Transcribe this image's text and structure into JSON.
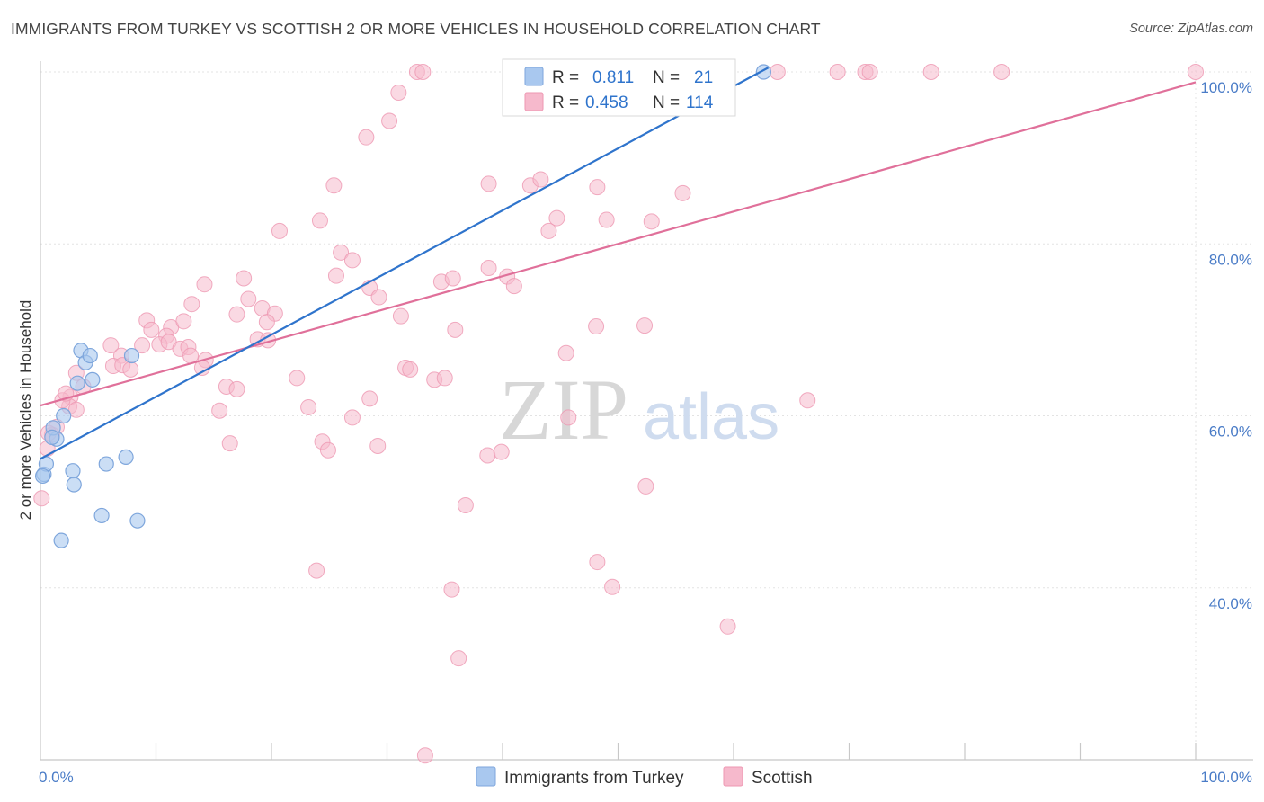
{
  "header": {
    "title": "IMMIGRANTS FROM TURKEY VS SCOTTISH 2 OR MORE VEHICLES IN HOUSEHOLD CORRELATION CHART",
    "source": "Source: ZipAtlas.com"
  },
  "watermark": {
    "zip": "ZIP",
    "atlas": "atlas"
  },
  "colors": {
    "blue_fill": "#a9c8ef",
    "blue_stroke": "#7ea6dc",
    "blue_line": "#2f74cc",
    "pink_fill": "#f6b9cc",
    "pink_stroke": "#ee97b2",
    "pink_line": "#e0709a",
    "grid": "#e3e3e3",
    "tick_text": "#4a7cc7"
  },
  "legend": {
    "r_label": "R =",
    "n_label": "N =",
    "rows": [
      {
        "series": "Immigrants from Turkey",
        "r": "0.811",
        "n": "21"
      },
      {
        "series": "Scottish",
        "r": "0.458",
        "n": "114"
      }
    ]
  },
  "chart_data": {
    "type": "scatter",
    "title": "IMMIGRANTS FROM TURKEY VS SCOTTISH 2 OR MORE VEHICLES IN HOUSEHOLD CORRELATION CHART",
    "xlabel": "",
    "ylabel": "2 or more Vehicles in Household",
    "xlim": [
      0,
      100
    ],
    "ylim": [
      18,
      102
    ],
    "x_tick_labels": [
      "0.0%",
      "100.0%"
    ],
    "y_ticks": [
      40,
      60,
      80,
      100
    ],
    "y_tick_labels": [
      "40.0%",
      "60.0%",
      "80.0%",
      "100.0%"
    ],
    "grid": true,
    "legend_position": "top-center",
    "series": [
      {
        "name": "Immigrants from Turkey",
        "color": "#a9c8ef",
        "r": 0.811,
        "n": 21,
        "trend": [
          [
            0,
            55.0
          ],
          [
            63.0,
            100.5
          ]
        ],
        "points": [
          [
            0.3,
            53.2
          ],
          [
            0.5,
            54.4
          ],
          [
            1.4,
            57.3
          ],
          [
            1.1,
            58.6
          ],
          [
            2.0,
            60.0
          ],
          [
            3.5,
            67.6
          ],
          [
            3.9,
            66.2
          ],
          [
            4.3,
            67.0
          ],
          [
            3.2,
            63.8
          ],
          [
            4.5,
            64.2
          ],
          [
            2.8,
            53.6
          ],
          [
            2.9,
            52.0
          ],
          [
            5.7,
            54.4
          ],
          [
            7.4,
            55.2
          ],
          [
            5.3,
            48.4
          ],
          [
            8.4,
            47.8
          ],
          [
            1.8,
            45.5
          ],
          [
            7.9,
            67.0
          ],
          [
            0.2,
            53.0
          ],
          [
            62.6,
            100.0
          ],
          [
            1.0,
            57.5
          ]
        ]
      },
      {
        "name": "Scottish",
        "color": "#f6b9cc",
        "r": 0.458,
        "n": 114,
        "trend": [
          [
            0,
            61.2
          ],
          [
            100,
            98.8
          ]
        ],
        "points": [
          [
            32.6,
            100
          ],
          [
            33.1,
            100
          ],
          [
            46.8,
            100
          ],
          [
            58.1,
            100
          ],
          [
            58.4,
            100
          ],
          [
            63.8,
            100
          ],
          [
            69.0,
            100
          ],
          [
            71.4,
            100
          ],
          [
            71.8,
            100
          ],
          [
            77.1,
            100
          ],
          [
            83.2,
            100
          ],
          [
            100,
            100
          ],
          [
            47.6,
            99.7
          ],
          [
            55.5,
            99.5
          ],
          [
            31.0,
            97.6
          ],
          [
            47.2,
            96.0
          ],
          [
            30.2,
            94.3
          ],
          [
            28.2,
            92.4
          ],
          [
            50.8,
            96.6
          ],
          [
            25.4,
            86.8
          ],
          [
            38.8,
            87.0
          ],
          [
            42.4,
            86.8
          ],
          [
            43.3,
            87.5
          ],
          [
            48.2,
            86.6
          ],
          [
            55.6,
            85.9
          ],
          [
            44.7,
            83.0
          ],
          [
            24.2,
            82.7
          ],
          [
            49.0,
            82.8
          ],
          [
            52.9,
            82.6
          ],
          [
            20.7,
            81.5
          ],
          [
            44.0,
            81.5
          ],
          [
            25.6,
            76.3
          ],
          [
            26.0,
            79.0
          ],
          [
            27.0,
            78.1
          ],
          [
            38.8,
            77.2
          ],
          [
            34.7,
            75.6
          ],
          [
            35.7,
            76.0
          ],
          [
            40.4,
            76.2
          ],
          [
            41.0,
            75.1
          ],
          [
            17.6,
            76.0
          ],
          [
            28.5,
            74.9
          ],
          [
            29.3,
            73.8
          ],
          [
            14.2,
            75.3
          ],
          [
            18.0,
            73.6
          ],
          [
            19.2,
            72.5
          ],
          [
            13.1,
            73.0
          ],
          [
            17.0,
            71.8
          ],
          [
            20.3,
            71.9
          ],
          [
            31.2,
            71.6
          ],
          [
            9.2,
            71.1
          ],
          [
            11.3,
            70.3
          ],
          [
            12.4,
            71.0
          ],
          [
            19.6,
            70.9
          ],
          [
            9.6,
            70.0
          ],
          [
            10.9,
            69.3
          ],
          [
            18.8,
            68.9
          ],
          [
            19.7,
            68.8
          ],
          [
            10.3,
            68.3
          ],
          [
            11.1,
            68.6
          ],
          [
            8.8,
            68.2
          ],
          [
            12.1,
            67.8
          ],
          [
            12.8,
            68.0
          ],
          [
            6.1,
            68.2
          ],
          [
            7.0,
            67.0
          ],
          [
            13.0,
            67.0
          ],
          [
            14.3,
            66.5
          ],
          [
            14.0,
            65.6
          ],
          [
            6.3,
            65.8
          ],
          [
            7.1,
            65.9
          ],
          [
            7.8,
            65.4
          ],
          [
            3.1,
            65.0
          ],
          [
            3.7,
            63.4
          ],
          [
            31.6,
            65.6
          ],
          [
            32.0,
            65.4
          ],
          [
            34.1,
            64.2
          ],
          [
            22.2,
            64.4
          ],
          [
            16.1,
            63.4
          ],
          [
            17.0,
            63.1
          ],
          [
            2.6,
            62.2
          ],
          [
            2.5,
            61.1
          ],
          [
            1.9,
            61.8
          ],
          [
            28.5,
            62.0
          ],
          [
            23.2,
            61.0
          ],
          [
            15.5,
            60.6
          ],
          [
            27.0,
            59.8
          ],
          [
            45.7,
            59.8
          ],
          [
            16.4,
            56.8
          ],
          [
            24.4,
            57.0
          ],
          [
            24.9,
            56.0
          ],
          [
            29.2,
            56.5
          ],
          [
            38.7,
            55.4
          ],
          [
            39.9,
            55.8
          ],
          [
            1.0,
            57.8
          ],
          [
            0.7,
            58.0
          ],
          [
            0.1,
            50.4
          ],
          [
            36.8,
            49.6
          ],
          [
            52.4,
            51.8
          ],
          [
            35.0,
            64.4
          ],
          [
            35.9,
            70.0
          ],
          [
            48.1,
            70.4
          ],
          [
            52.3,
            70.5
          ],
          [
            45.5,
            67.3
          ],
          [
            66.4,
            61.8
          ],
          [
            23.9,
            42.0
          ],
          [
            48.2,
            43.0
          ],
          [
            35.6,
            39.8
          ],
          [
            49.5,
            40.1
          ],
          [
            59.5,
            35.5
          ],
          [
            36.2,
            31.8
          ],
          [
            33.3,
            20.5
          ],
          [
            1.4,
            58.7
          ],
          [
            0.6,
            56.2
          ],
          [
            2.2,
            62.6
          ],
          [
            3.1,
            60.7
          ]
        ]
      }
    ]
  },
  "bottom_legend": [
    {
      "label": "Immigrants from Turkey"
    },
    {
      "label": "Scottish"
    }
  ]
}
